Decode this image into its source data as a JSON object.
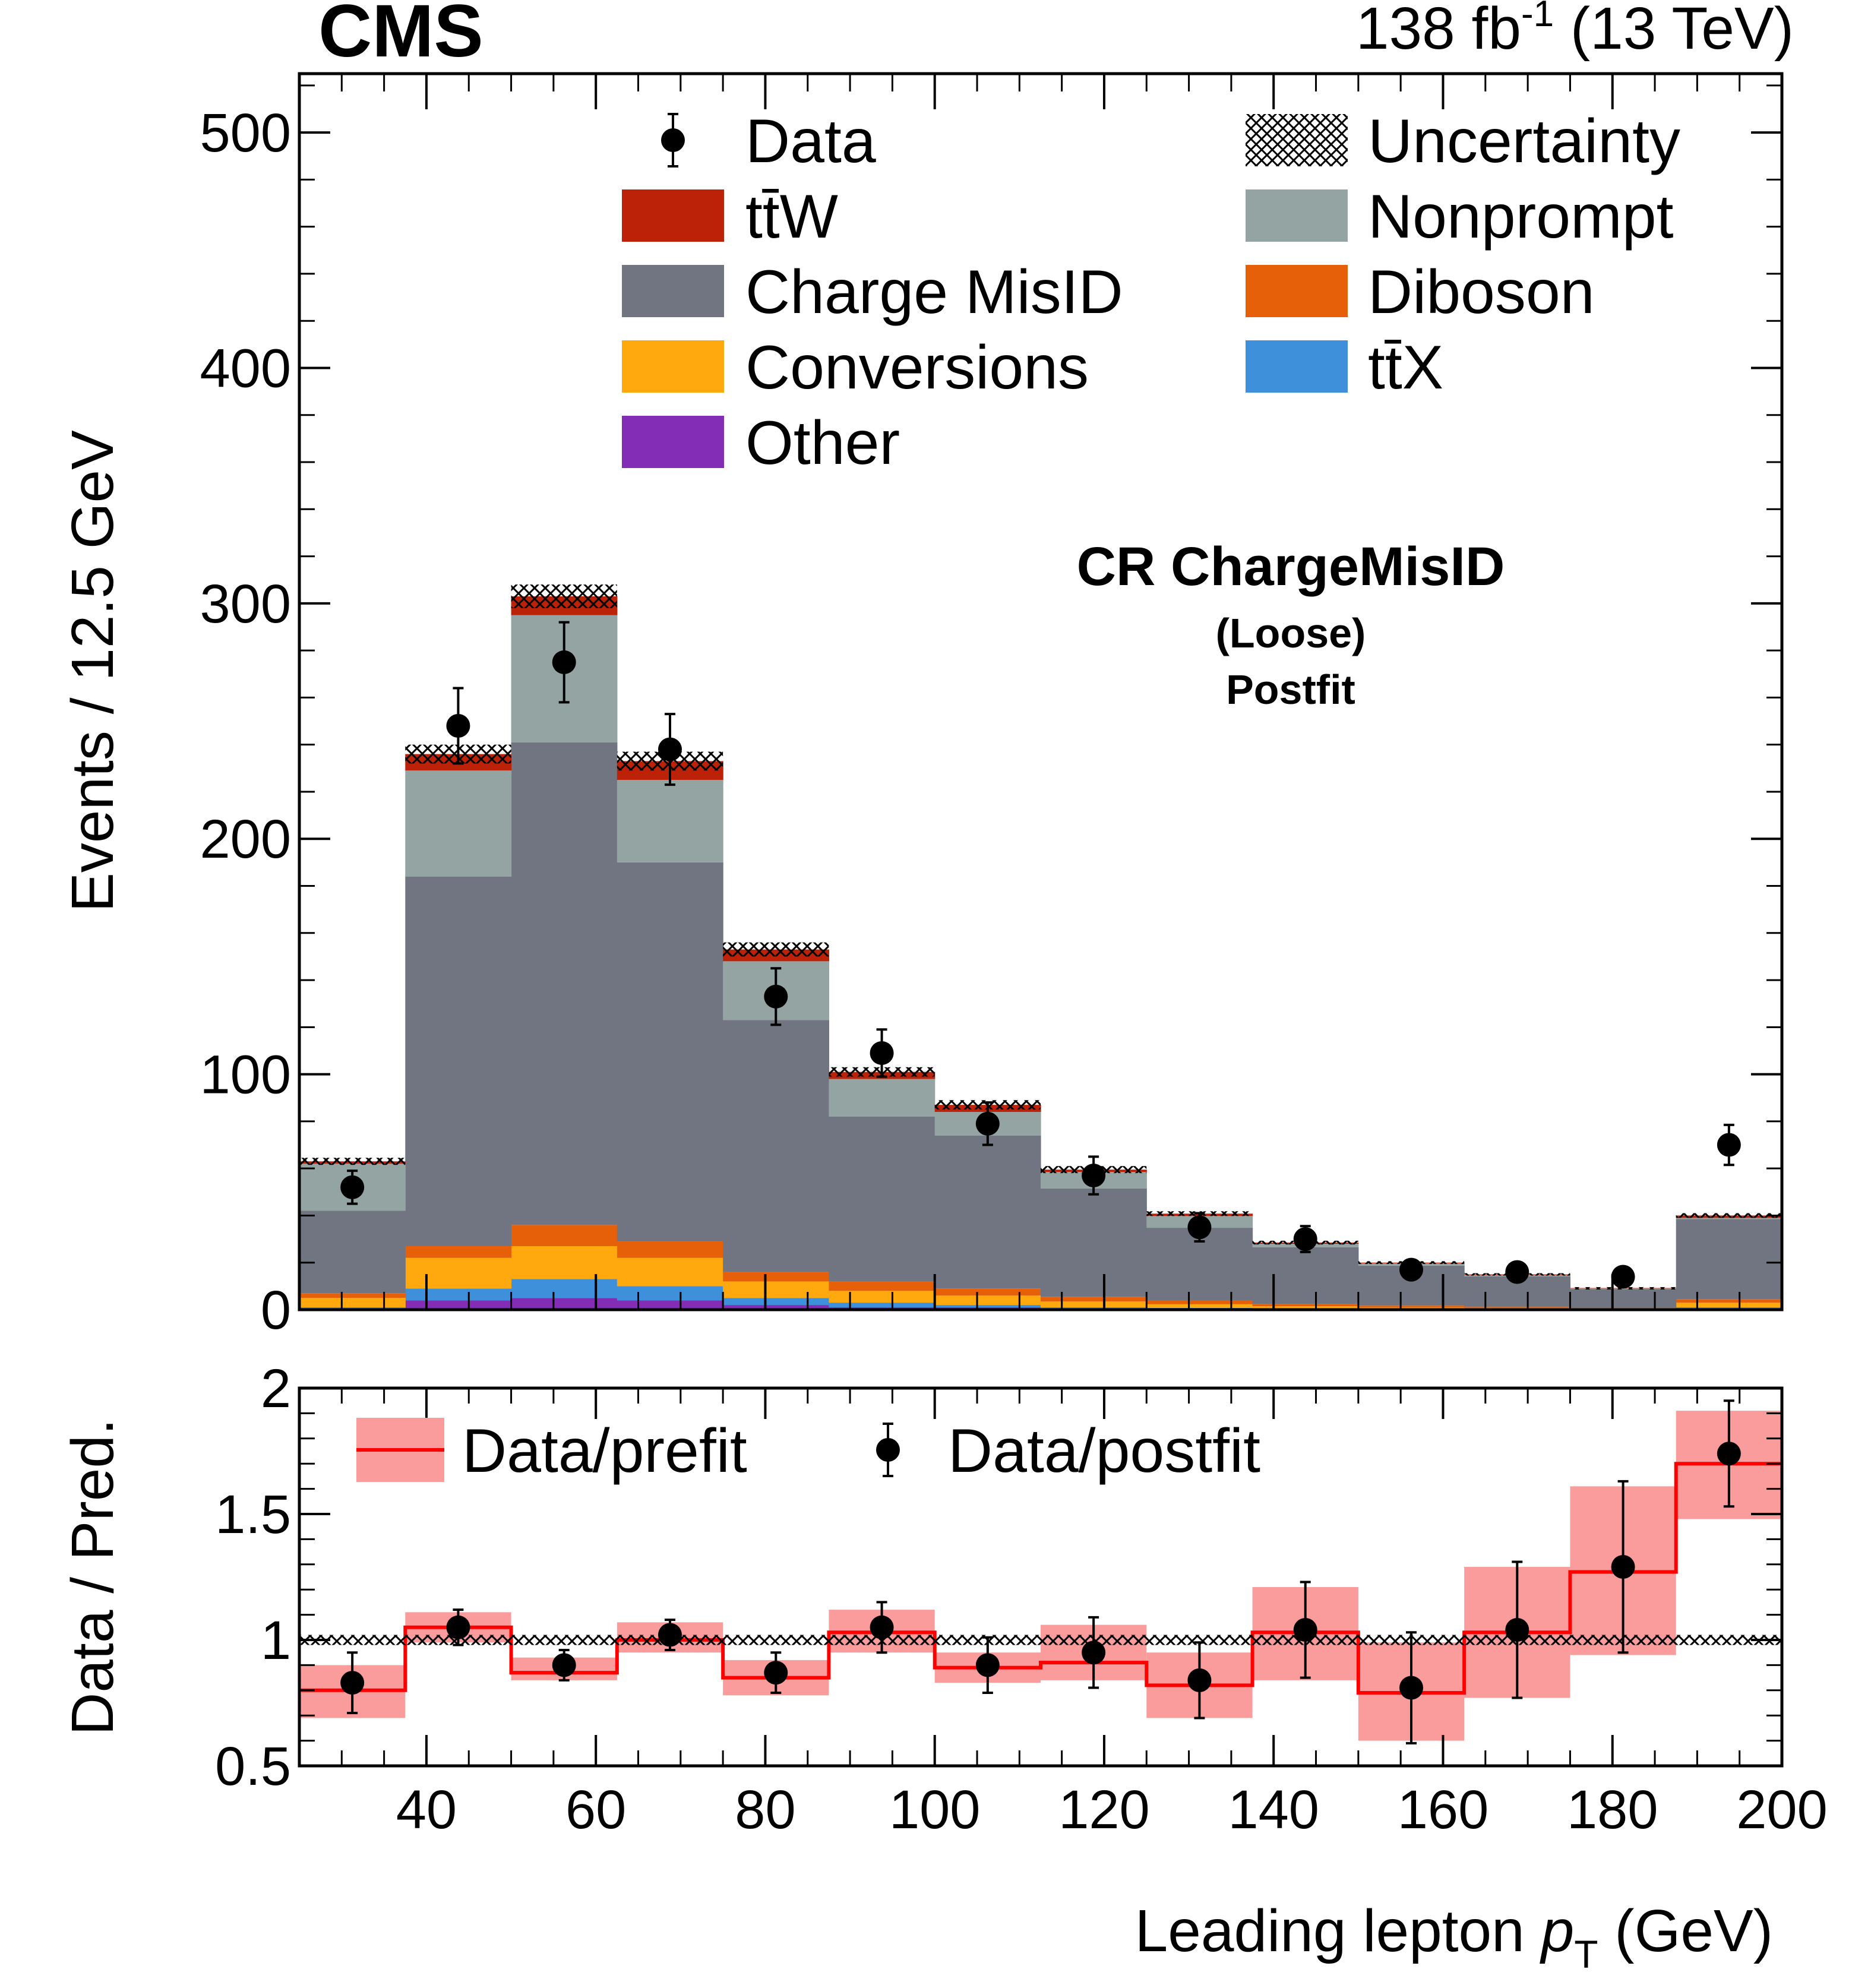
{
  "header": {
    "experiment": "CMS",
    "lumi_prefix": "138 fb",
    "lumi_exponent": "-1",
    "energy": " (13 TeV)"
  },
  "annotations": {
    "region": "CR ChargeMisID",
    "selection": "(Loose)",
    "fit_stage": "Postfit"
  },
  "legend_main": [
    {
      "key": "data",
      "label": "Data",
      "style": "marker"
    },
    {
      "key": "uncertainty",
      "label": "Uncertainty",
      "style": "hatch"
    },
    {
      "key": "ttW",
      "label": "tt̄W",
      "style": "box",
      "color": "#bc2208"
    },
    {
      "key": "nonprompt",
      "label": "Nonprompt",
      "style": "box",
      "color": "#94a4a2"
    },
    {
      "key": "chargemisid",
      "label": "Charge MisID",
      "style": "box",
      "color": "#717581"
    },
    {
      "key": "diboson",
      "label": "Diboson",
      "style": "box",
      "color": "#e66009"
    },
    {
      "key": "conversions",
      "label": "Conversions",
      "style": "box",
      "color": "#ffa90e"
    },
    {
      "key": "ttX",
      "label": "tt̄X",
      "style": "box",
      "color": "#3f90da"
    },
    {
      "key": "other",
      "label": "Other",
      "style": "box",
      "color": "#832db6"
    }
  ],
  "legend_ratio": [
    {
      "key": "prefit",
      "label": "Data/prefit",
      "color": "#ff0000",
      "band_color": "#fa9c9c"
    },
    {
      "key": "postfit",
      "label": "Data/postfit"
    }
  ],
  "chart_data": [
    {
      "type": "stacked_histogram",
      "title": "CR ChargeMisID (Loose) Postfit",
      "xlabel": "Leading lepton p_T (GeV)",
      "ylabel": "Events / 12.5 GeV",
      "xlim": [
        25,
        200
      ],
      "ylim": [
        0,
        525
      ],
      "yticks": [
        0,
        100,
        200,
        300,
        400,
        500
      ],
      "bin_edges": [
        25,
        37.5,
        50,
        62.5,
        75,
        87.5,
        100,
        112.5,
        125,
        137.5,
        150,
        162.5,
        175,
        187.5,
        200
      ],
      "stack_order": [
        "other",
        "ttX",
        "conversions",
        "diboson",
        "chargemisid",
        "nonprompt",
        "ttW"
      ],
      "series": [
        {
          "name": "Other",
          "key": "other",
          "color": "#832db6",
          "values": [
            0.5,
            4,
            5,
            4,
            2,
            1,
            1,
            0.5,
            0.5,
            0.3,
            0.2,
            0.2,
            0.1,
            0.5
          ]
        },
        {
          "name": "ttX",
          "key": "ttX",
          "color": "#3f90da",
          "values": [
            0.5,
            5,
            8,
            6,
            3,
            2,
            1,
            0.5,
            0.3,
            0.2,
            0.1,
            0.1,
            0.1,
            0.5
          ]
        },
        {
          "name": "Conversions",
          "key": "conversions",
          "color": "#ffa90e",
          "values": [
            4,
            13,
            14,
            12,
            7,
            5,
            4,
            2.5,
            1.5,
            1,
            0.6,
            0.4,
            0.2,
            2
          ]
        },
        {
          "name": "Diboson",
          "key": "diboson",
          "color": "#e66009",
          "values": [
            2,
            5,
            9,
            7,
            4,
            4,
            3,
            2,
            1.5,
            1,
            0.8,
            0.5,
            0.3,
            1.5
          ]
        },
        {
          "name": "Charge MisID",
          "key": "chargemisid",
          "color": "#717581",
          "values": [
            35,
            157,
            205,
            161,
            107,
            70,
            65,
            46,
            31,
            24,
            17,
            13,
            8,
            34
          ]
        },
        {
          "name": "Nonprompt",
          "key": "nonprompt",
          "color": "#94a4a2",
          "values": [
            20,
            45,
            54,
            35,
            25,
            16,
            10,
            7,
            5,
            1.5,
            1,
            0.5,
            0.3,
            0.5
          ]
        },
        {
          "name": "ttW",
          "key": "ttW",
          "color": "#bc2208",
          "values": [
            1,
            7,
            8,
            8,
            5,
            3,
            3,
            1,
            1,
            0.5,
            0.3,
            0.3,
            0.2,
            1
          ]
        }
      ],
      "uncertainty": {
        "name": "Uncertainty",
        "half_width": [
          1.5,
          4,
          5,
          4,
          3,
          2,
          2,
          1.5,
          1,
          0.8,
          0.6,
          0.5,
          0.4,
          1
        ]
      },
      "data": {
        "name": "Data",
        "x": [
          31.25,
          43.75,
          56.25,
          68.75,
          81.25,
          93.75,
          106.25,
          118.75,
          131.25,
          143.75,
          156.25,
          168.75,
          181.25,
          193.75
        ],
        "y": [
          52,
          248,
          275,
          238,
          133,
          109,
          79,
          57,
          35,
          30,
          17,
          16,
          14,
          70
        ],
        "err": [
          7,
          16,
          17,
          15,
          12,
          10,
          9,
          8,
          6,
          5.5,
          4,
          4,
          3.7,
          8.5
        ]
      }
    },
    {
      "type": "ratio",
      "xlabel": "Leading lepton p_T (GeV)",
      "ylabel": "Data / Pred.",
      "xlim": [
        25,
        200
      ],
      "ylim": [
        0.5,
        2
      ],
      "yticks": [
        0.5,
        1,
        1.5,
        2
      ],
      "yticklabels": [
        "0.5",
        "1",
        "1.5",
        "2"
      ],
      "xticks": [
        40,
        60,
        80,
        100,
        120,
        140,
        160,
        180,
        200
      ],
      "bin_edges": [
        25,
        37.5,
        50,
        62.5,
        75,
        87.5,
        100,
        112.5,
        125,
        137.5,
        150,
        162.5,
        175,
        187.5,
        200
      ],
      "prefit": {
        "name": "Data/prefit",
        "values": [
          0.8,
          1.05,
          0.87,
          1.0,
          0.85,
          1.03,
          0.89,
          0.91,
          0.82,
          1.03,
          0.79,
          1.03,
          1.27,
          1.7
        ],
        "band_low": [
          0.69,
          0.99,
          0.84,
          0.95,
          0.78,
          0.95,
          0.83,
          0.84,
          0.69,
          0.84,
          0.6,
          0.77,
          0.94,
          1.48
        ],
        "band_high": [
          0.9,
          1.11,
          0.93,
          1.07,
          0.92,
          1.12,
          0.95,
          1.06,
          0.95,
          1.21,
          0.99,
          1.29,
          1.61,
          1.91
        ]
      },
      "postfit": {
        "name": "Data/postfit",
        "x": [
          31.25,
          43.75,
          56.25,
          68.75,
          81.25,
          93.75,
          106.25,
          118.75,
          131.25,
          143.75,
          156.25,
          168.75,
          181.25,
          193.75
        ],
        "y": [
          0.83,
          1.05,
          0.9,
          1.02,
          0.87,
          1.05,
          0.9,
          0.95,
          0.84,
          1.04,
          0.81,
          1.04,
          1.29,
          1.74
        ],
        "err": [
          0.12,
          0.07,
          0.06,
          0.06,
          0.08,
          0.1,
          0.11,
          0.14,
          0.15,
          0.19,
          0.22,
          0.27,
          0.34,
          0.21
        ]
      },
      "uncertainty": {
        "name": "Uncertainty",
        "center": 1,
        "half_width": 0.02
      }
    }
  ]
}
